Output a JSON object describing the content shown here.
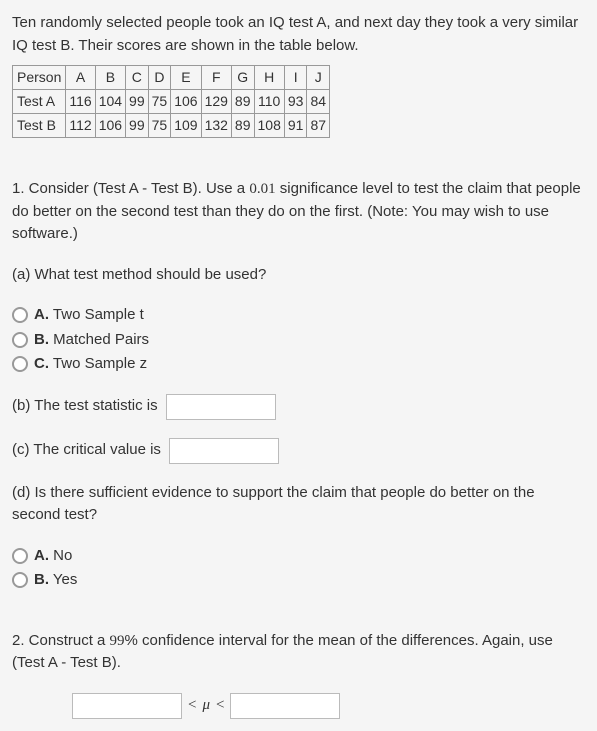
{
  "intro_text": "Ten randomly selected people took an IQ test A, and next day they took a very similar IQ test B. Their scores are shown in the table below.",
  "table": {
    "header_row": [
      "Person",
      "A",
      "B",
      "C",
      "D",
      "E",
      "F",
      "G",
      "H",
      "I",
      "J"
    ],
    "row_testA": [
      "Test A",
      "116",
      "104",
      "99",
      "75",
      "106",
      "129",
      "89",
      "110",
      "93",
      "84"
    ],
    "row_testB": [
      "Test B",
      "112",
      "106",
      "99",
      "75",
      "109",
      "132",
      "89",
      "108",
      "91",
      "87"
    ]
  },
  "q1": {
    "prefix": "1. Consider (Test A - Test B). Use a ",
    "alpha": "0.01",
    "suffix": " significance level to test the claim that people do better on the second test than they do on the first. (Note: You may wish to use software.)",
    "a_text": "(a) What test method should be used?",
    "options_a": {
      "A": "Two Sample t",
      "B": "Matched Pairs",
      "C": "Two Sample z"
    },
    "b_text": "(b) The test statistic is",
    "c_text": "(c) The critical value is",
    "d_text": "(d) Is there sufficient evidence to support the claim that people do better on the second test?",
    "options_d": {
      "A": "No",
      "B": "Yes"
    }
  },
  "q2": {
    "prefix": "2. Construct a ",
    "conf": "99",
    "suffix": "% confidence interval for the mean of the differences. Again, use (Test A - Test B).",
    "lt1": "<",
    "mu": "μ",
    "lt2": "<"
  },
  "labels": {
    "A": "A.",
    "B": "B.",
    "C": "C."
  }
}
